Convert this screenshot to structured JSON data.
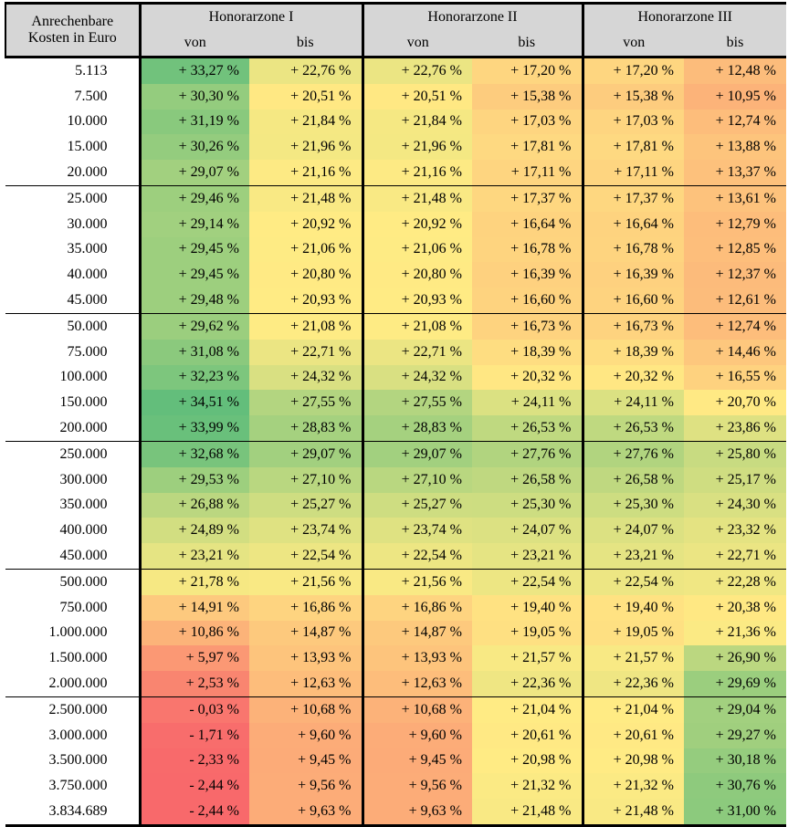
{
  "header": {
    "row_label_line1": "Anrechenbare",
    "row_label_line2": "Kosten in Euro"
  },
  "styles": {
    "header_bg": "#d6d6d6",
    "border_color": "#000000",
    "text_color": "#000000"
  },
  "chart_data": {
    "type": "heatmap",
    "row_header": "Anrechenbare Kosten in Euro",
    "column_groups": [
      "Honorarzone I",
      "Honorarzone II",
      "Honorarzone III"
    ],
    "sub_columns": [
      "von",
      "bis"
    ],
    "unit": "%",
    "row_group_size": 5,
    "color_scale": {
      "min": {
        "value": -2.44,
        "color": "#F8696B"
      },
      "mid": {
        "value": 21.0,
        "color": "#FFEB84"
      },
      "max": {
        "value": 34.51,
        "color": "#63BE7B"
      }
    },
    "rows": [
      {
        "kosten": "5.113",
        "values": [
          33.27,
          22.76,
          22.76,
          17.2,
          17.2,
          12.48
        ]
      },
      {
        "kosten": "7.500",
        "values": [
          30.3,
          20.51,
          20.51,
          15.38,
          15.38,
          10.95
        ]
      },
      {
        "kosten": "10.000",
        "values": [
          31.19,
          21.84,
          21.84,
          17.03,
          17.03,
          12.74
        ]
      },
      {
        "kosten": "15.000",
        "values": [
          30.26,
          21.96,
          21.96,
          17.81,
          17.81,
          13.88
        ]
      },
      {
        "kosten": "20.000",
        "values": [
          29.07,
          21.16,
          21.16,
          17.11,
          17.11,
          13.37
        ]
      },
      {
        "kosten": "25.000",
        "values": [
          29.46,
          21.48,
          21.48,
          17.37,
          17.37,
          13.61
        ]
      },
      {
        "kosten": "30.000",
        "values": [
          29.14,
          20.92,
          20.92,
          16.64,
          16.64,
          12.79
        ]
      },
      {
        "kosten": "35.000",
        "values": [
          29.45,
          21.06,
          21.06,
          16.78,
          16.78,
          12.85
        ]
      },
      {
        "kosten": "40.000",
        "values": [
          29.45,
          20.8,
          20.8,
          16.39,
          16.39,
          12.37
        ]
      },
      {
        "kosten": "45.000",
        "values": [
          29.48,
          20.93,
          20.93,
          16.6,
          16.6,
          12.61
        ]
      },
      {
        "kosten": "50.000",
        "values": [
          29.62,
          21.08,
          21.08,
          16.73,
          16.73,
          12.74
        ]
      },
      {
        "kosten": "75.000",
        "values": [
          31.08,
          22.71,
          22.71,
          18.39,
          18.39,
          14.46
        ]
      },
      {
        "kosten": "100.000",
        "values": [
          32.23,
          24.32,
          24.32,
          20.32,
          20.32,
          16.55
        ]
      },
      {
        "kosten": "150.000",
        "values": [
          34.51,
          27.55,
          27.55,
          24.11,
          24.11,
          20.7
        ]
      },
      {
        "kosten": "200.000",
        "values": [
          33.99,
          28.83,
          28.83,
          26.53,
          26.53,
          23.86
        ]
      },
      {
        "kosten": "250.000",
        "values": [
          32.68,
          29.07,
          29.07,
          27.76,
          27.76,
          25.8
        ]
      },
      {
        "kosten": "300.000",
        "values": [
          29.53,
          27.1,
          27.1,
          26.58,
          26.58,
          25.17
        ]
      },
      {
        "kosten": "350.000",
        "values": [
          26.88,
          25.27,
          25.27,
          25.3,
          25.3,
          24.3
        ]
      },
      {
        "kosten": "400.000",
        "values": [
          24.89,
          23.74,
          23.74,
          24.07,
          24.07,
          23.32
        ]
      },
      {
        "kosten": "450.000",
        "values": [
          23.21,
          22.54,
          22.54,
          23.21,
          23.21,
          22.71
        ]
      },
      {
        "kosten": "500.000",
        "values": [
          21.78,
          21.56,
          21.56,
          22.54,
          22.54,
          22.28
        ]
      },
      {
        "kosten": "750.000",
        "values": [
          14.91,
          16.86,
          16.86,
          19.4,
          19.4,
          20.38
        ]
      },
      {
        "kosten": "1.000.000",
        "values": [
          10.86,
          14.87,
          14.87,
          19.05,
          19.05,
          21.36
        ]
      },
      {
        "kosten": "1.500.000",
        "values": [
          5.97,
          13.93,
          13.93,
          21.57,
          21.57,
          26.9
        ]
      },
      {
        "kosten": "2.000.000",
        "values": [
          2.53,
          12.63,
          12.63,
          22.36,
          22.36,
          29.69
        ]
      },
      {
        "kosten": "2.500.000",
        "values": [
          -0.03,
          10.68,
          10.68,
          21.04,
          21.04,
          29.04
        ]
      },
      {
        "kosten": "3.000.000",
        "values": [
          -1.71,
          9.6,
          9.6,
          20.61,
          20.61,
          29.27
        ]
      },
      {
        "kosten": "3.500.000",
        "values": [
          -2.33,
          9.45,
          9.45,
          20.98,
          20.98,
          30.18
        ]
      },
      {
        "kosten": "3.750.000",
        "values": [
          -2.44,
          9.56,
          9.56,
          21.32,
          21.32,
          30.76
        ]
      },
      {
        "kosten": "3.834.689",
        "values": [
          -2.44,
          9.63,
          9.63,
          21.48,
          21.48,
          31.0
        ]
      }
    ]
  }
}
